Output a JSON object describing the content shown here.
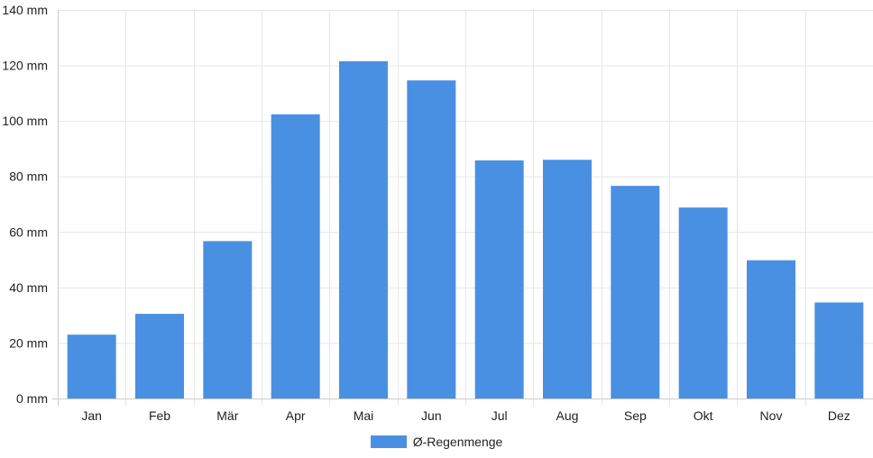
{
  "chart_data": {
    "type": "bar",
    "categories": [
      "Jan",
      "Feb",
      "Mär",
      "Apr",
      "Mai",
      "Jun",
      "Jul",
      "Aug",
      "Sep",
      "Okt",
      "Nov",
      "Dez"
    ],
    "series": [
      {
        "name": "Ø-Regenmenge",
        "values": [
          23,
          30.5,
          56.7,
          102.4,
          121.5,
          114.6,
          85.8,
          86,
          76.6,
          68.8,
          49.8,
          34.6
        ]
      }
    ],
    "unit": "mm",
    "ylim": [
      0,
      140
    ],
    "yticks": [
      0,
      20,
      40,
      60,
      80,
      100,
      120,
      140
    ],
    "ytick_labels": [
      "0 mm",
      "20 mm",
      "40 mm",
      "60 mm",
      "80 mm",
      "100 mm",
      "120 mm",
      "140 mm"
    ],
    "grid": true,
    "legend_position": "bottom-center",
    "bar_color": "#4a90e2",
    "title": "",
    "xlabel": "",
    "ylabel": ""
  }
}
